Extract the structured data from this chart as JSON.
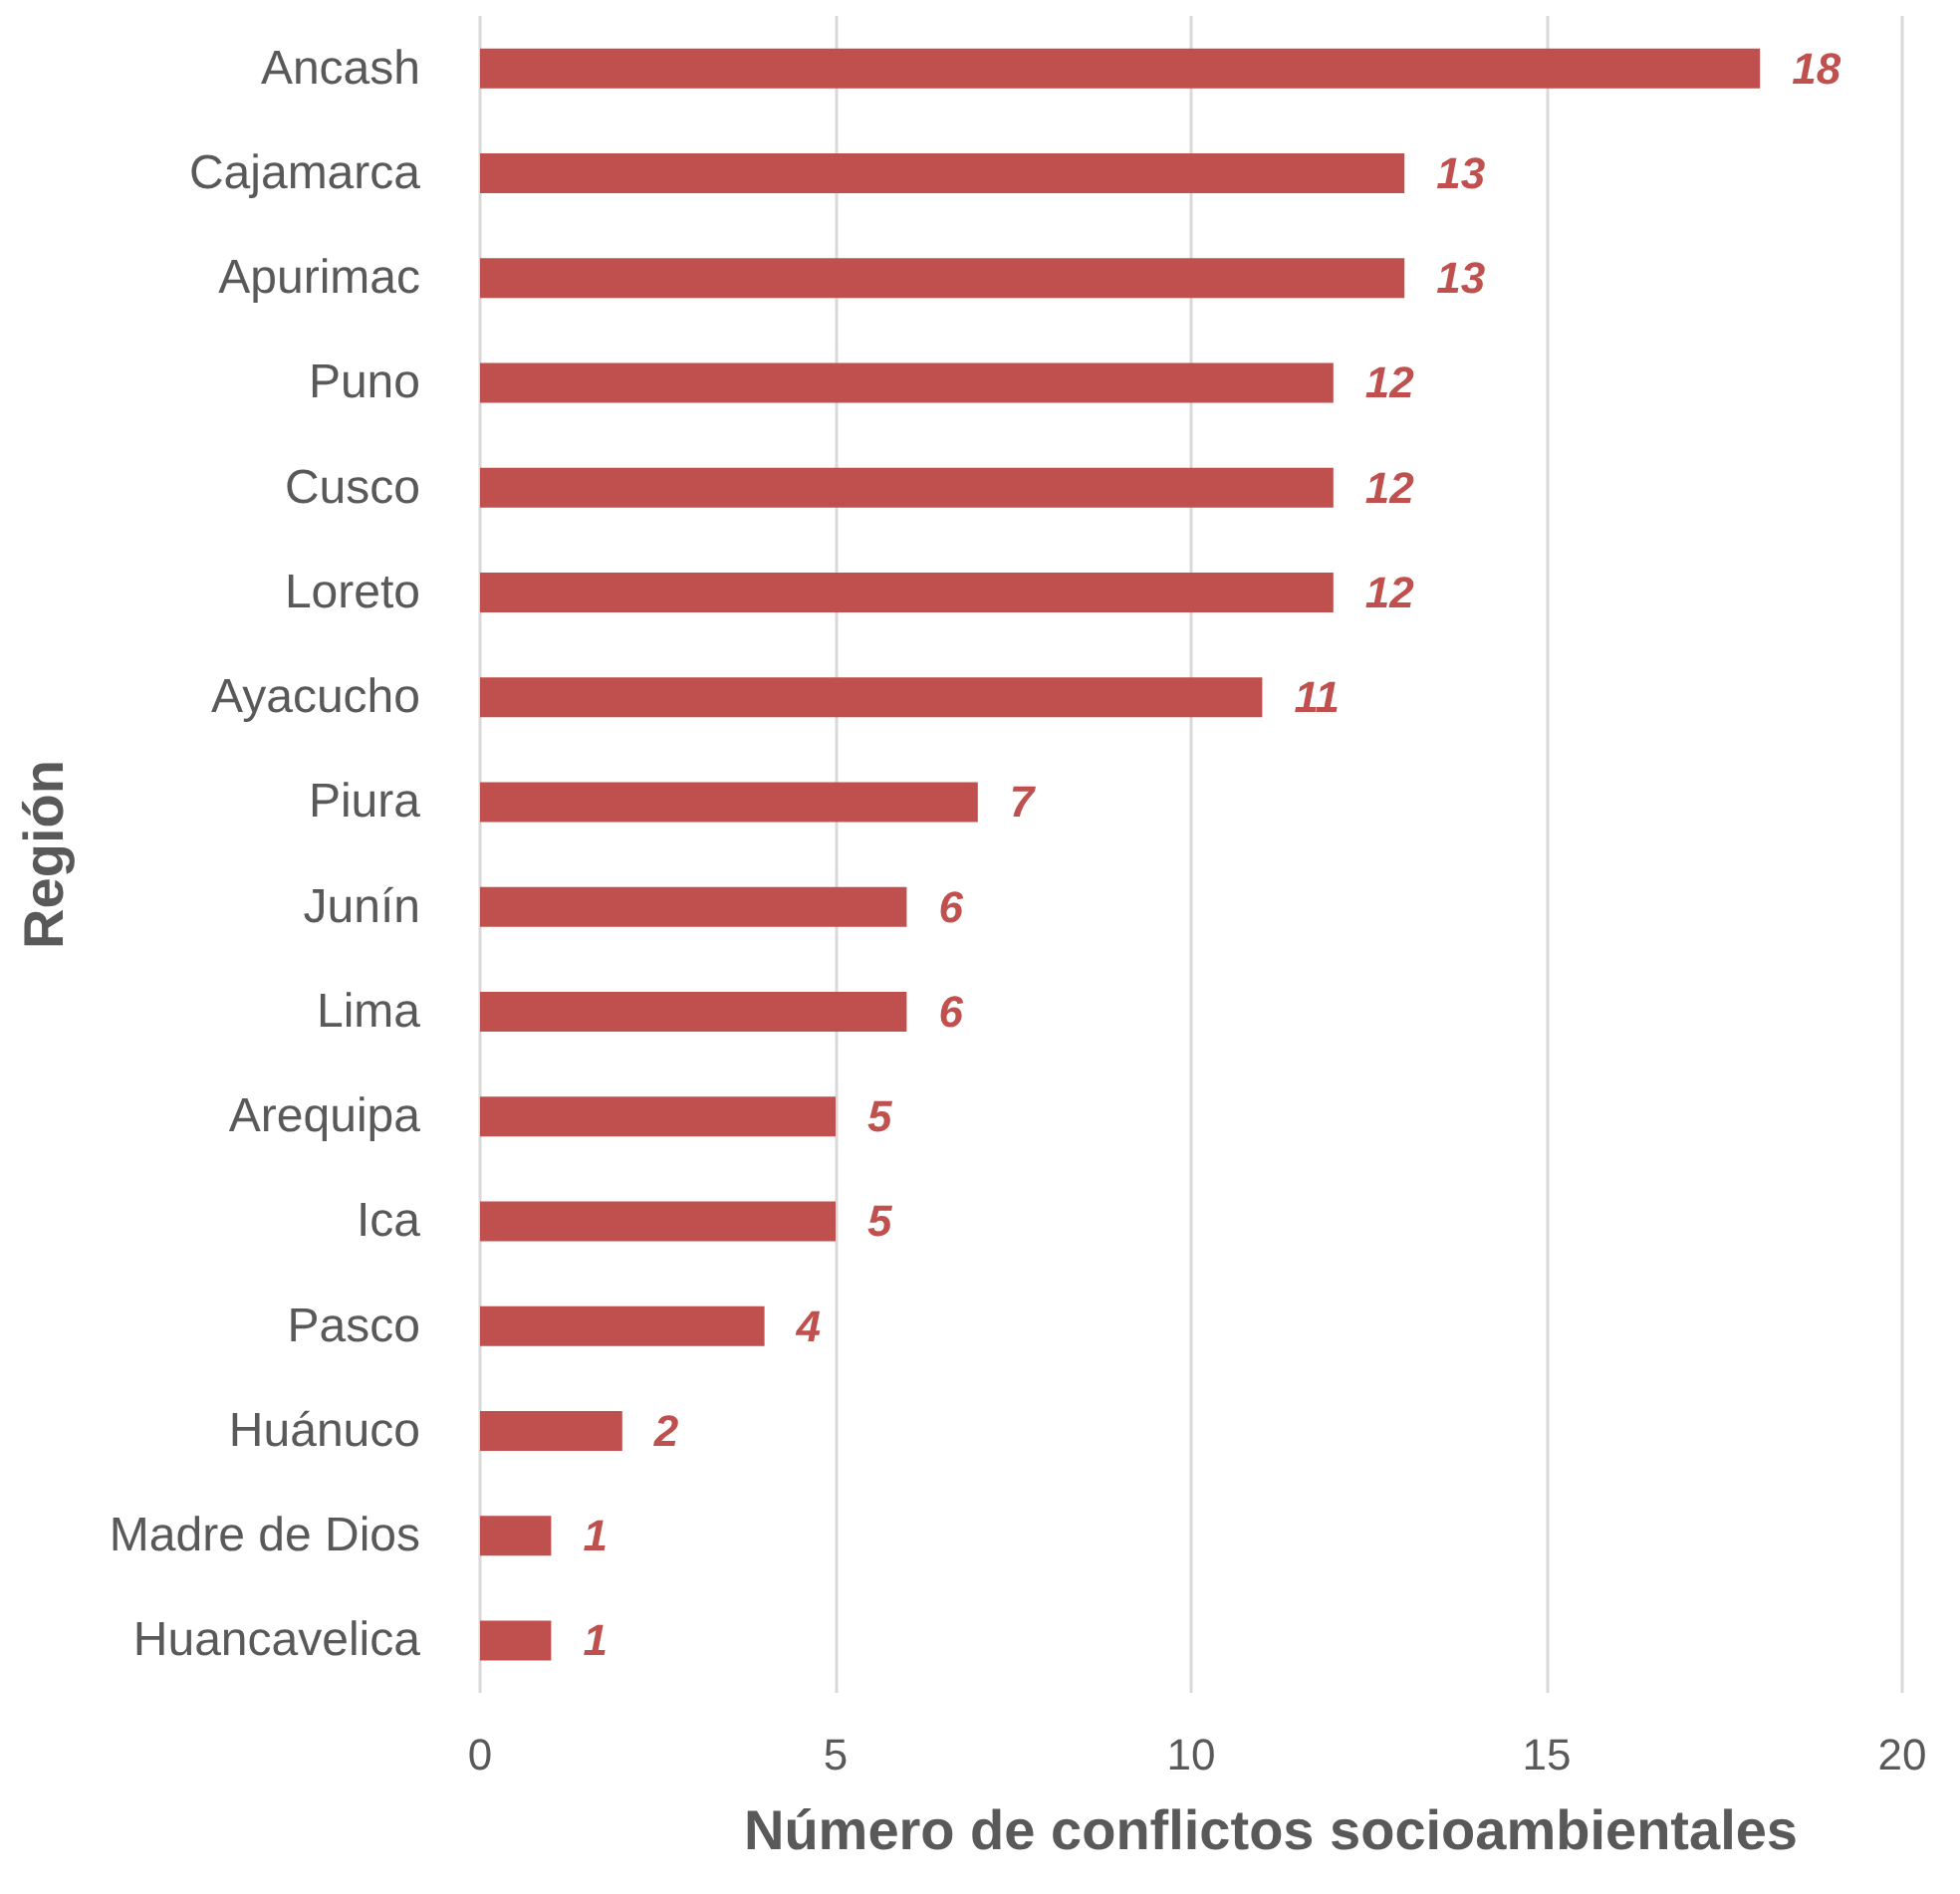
{
  "chart_data": {
    "type": "bar",
    "orientation": "horizontal",
    "xlabel": "Número de conflictos socioambientales",
    "ylabel": "Región",
    "categories": [
      "Ancash",
      "Cajamarca",
      "Apurimac",
      "Puno",
      "Cusco",
      "Loreto",
      "Ayacucho",
      "Piura",
      "Junín",
      "Lima",
      "Arequipa",
      "Ica",
      "Pasco",
      "Huánuco",
      "Madre de Dios",
      "Huancavelica"
    ],
    "values": [
      18,
      13,
      13,
      12,
      12,
      12,
      11,
      7,
      6,
      6,
      5,
      5,
      4,
      2,
      1,
      1
    ],
    "color": "#c0504d",
    "xlim": [
      0,
      20
    ],
    "xticks": [
      0,
      5,
      10,
      15,
      20
    ],
    "grid": "x",
    "data_labels": true
  }
}
